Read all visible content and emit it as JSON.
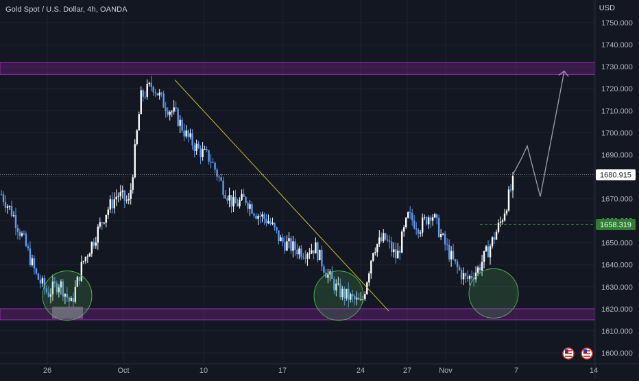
{
  "header": {
    "title": "Gold Spot / U.S. Dollar, 4h, OANDA",
    "currency": "USD"
  },
  "colors": {
    "background": "#131722",
    "grid": "#1e2230",
    "candle_up": "#ffffff",
    "candle_down": "#5b9cf6",
    "zone": "#9c27b0",
    "trendline": "#d4c22d",
    "circle": "#4caf50",
    "projection": "#9598a1",
    "current_price_label": "#ffffff",
    "level_label": "#2e7d32"
  },
  "price_axis": {
    "ticks": [
      "1750.000",
      "1740.000",
      "1730.000",
      "1720.000",
      "1710.000",
      "1700.000",
      "1690.000",
      "1680.000",
      "1670.000",
      "1660.000",
      "1650.000",
      "1640.000",
      "1630.000",
      "1620.000",
      "1610.000",
      "1600.000"
    ],
    "current_price": "1680.915",
    "level_price": "1658.319"
  },
  "time_axis": {
    "labels": [
      "26",
      "Oct",
      "10",
      "17",
      "24",
      "27",
      "Nov",
      "7",
      "14"
    ]
  },
  "icons": [
    "us-flag-icon",
    "us-flag-icon"
  ],
  "chart_data": {
    "type": "candlestick",
    "title": "Gold Spot / U.S. Dollar, 4h, OANDA",
    "ylabel": "USD",
    "ylim": [
      1597,
      1757
    ],
    "grid": true,
    "series": [
      {
        "name": "Gold Spot / U.S. Dollar",
        "anchor_path": [
          1672,
          1663,
          1650,
          1635,
          1627,
          1632,
          1622,
          1641,
          1652,
          1664,
          1672,
          1668,
          1716,
          1722,
          1713,
          1708,
          1698,
          1692,
          1688,
          1676,
          1667,
          1670,
          1663,
          1660,
          1651,
          1648,
          1646,
          1648,
          1636,
          1628,
          1625,
          1622,
          1648,
          1652,
          1643,
          1662,
          1657,
          1664,
          1651,
          1640,
          1633,
          1638,
          1648,
          1660,
          1677
        ],
        "high": 1729.5,
        "low": 1617
      }
    ],
    "zones": [
      {
        "name": "resistance",
        "from": 1726.5,
        "to": 1732
      },
      {
        "name": "support",
        "from": 1615,
        "to": 1620
      }
    ],
    "horizontal_lines": [
      {
        "value": 1680.915,
        "style": "dotted"
      },
      {
        "value": 1658.319,
        "style": "dashed"
      }
    ]
  }
}
